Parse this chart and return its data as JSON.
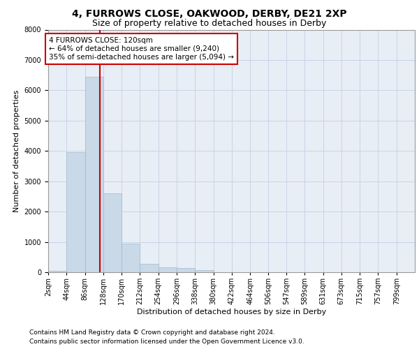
{
  "title_line1": "4, FURROWS CLOSE, OAKWOOD, DERBY, DE21 2XP",
  "title_line2": "Size of property relative to detached houses in Derby",
  "xlabel": "Distribution of detached houses by size in Derby",
  "ylabel": "Number of detached properties",
  "footnote1": "Contains HM Land Registry data © Crown copyright and database right 2024.",
  "footnote2": "Contains public sector information licensed under the Open Government Licence v3.0.",
  "annotation_line1": "4 FURROWS CLOSE: 120sqm",
  "annotation_line2": "← 64% of detached houses are smaller (9,240)",
  "annotation_line3": "35% of semi-detached houses are larger (5,094) →",
  "bar_edges": [
    2,
    44,
    86,
    128,
    170,
    212,
    254,
    296,
    338,
    380,
    422,
    464,
    506,
    547,
    589,
    631,
    673,
    715,
    757,
    799,
    841
  ],
  "bar_heights": [
    40,
    3950,
    6450,
    2600,
    950,
    280,
    150,
    130,
    70,
    5,
    0,
    0,
    0,
    0,
    0,
    0,
    0,
    0,
    0,
    0
  ],
  "bar_color": "#c9d9e8",
  "bar_edge_color": "#a0b8cc",
  "vline_x": 120,
  "vline_color": "#cc0000",
  "annotation_box_color": "#cc0000",
  "background_color": "#ffffff",
  "grid_color": "#c8d4e8",
  "axes_bg_color": "#e8eef5",
  "ylim": [
    0,
    8000
  ],
  "yticks": [
    0,
    1000,
    2000,
    3000,
    4000,
    5000,
    6000,
    7000,
    8000
  ],
  "tick_label_fontsize": 7,
  "axis_label_fontsize": 8,
  "title1_fontsize": 10,
  "title2_fontsize": 9,
  "footnote_fontsize": 6.5
}
